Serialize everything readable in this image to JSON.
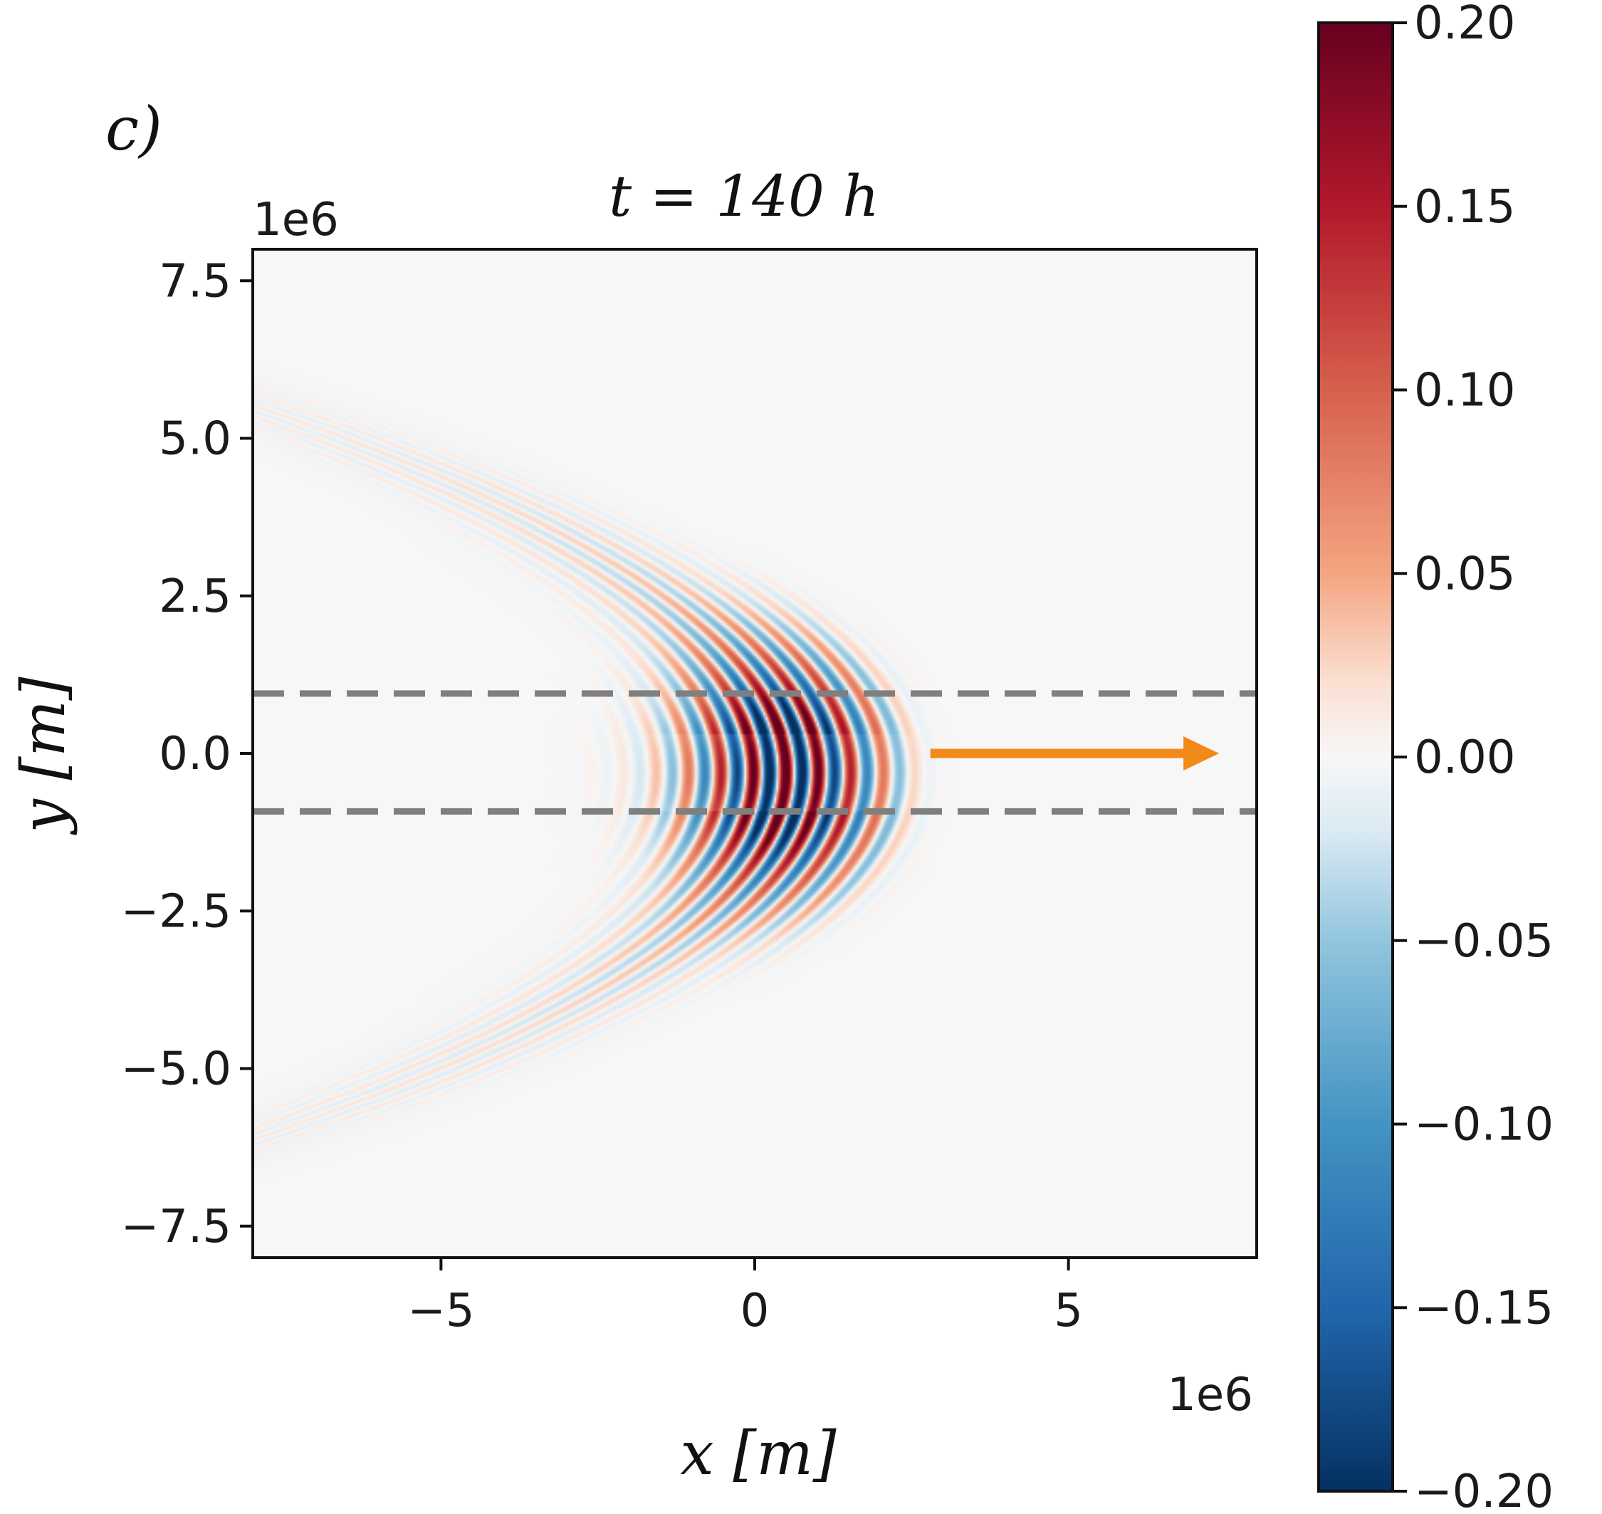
{
  "panel_label": "c)",
  "title": "t = 140 h",
  "x_offset_text": "1e6",
  "y_offset_text": "1e6",
  "chart_data": {
    "type": "heatmap",
    "title": "t = 140 h",
    "xlabel": "x [m]",
    "ylabel": "y [m]",
    "x_multiplier": "1e6",
    "y_multiplier": "1e6",
    "xlim": [
      -8,
      8
    ],
    "ylim": [
      -8,
      8
    ],
    "xticks": [
      -5,
      0,
      5
    ],
    "xtick_labels": [
      "−5",
      "0",
      "5"
    ],
    "yticks": [
      7.5,
      5.0,
      2.5,
      0.0,
      -2.5,
      -5.0,
      -7.5
    ],
    "ytick_labels": [
      "7.5",
      "5.0",
      "2.5",
      "0.0",
      "−2.5",
      "−5.0",
      "−7.5"
    ],
    "colormap": "RdBu_r",
    "colorbar": {
      "vmin": -0.2,
      "vmax": 0.2,
      "ticks": [
        0.2,
        0.15,
        0.1,
        0.05,
        0.0,
        -0.05,
        -0.1,
        -0.15,
        -0.2
      ],
      "tick_labels": [
        "0.20",
        "0.15",
        "0.10",
        "0.05",
        "0.00",
        "−0.05",
        "−0.10",
        "−0.15",
        "−0.20"
      ]
    },
    "hlines": [
      {
        "y": 0.95,
        "style": "dashed",
        "color": "#7f7f7f"
      },
      {
        "y": -0.92,
        "style": "dashed",
        "color": "#7f7f7f"
      }
    ],
    "arrow": {
      "x_start": 2.8,
      "x_end": 7.4,
      "y": 0.0,
      "color": "#f28a1a"
    },
    "field": {
      "center": [
        0.5,
        -0.3
      ],
      "peak_amplitude": 0.2,
      "wave_spacing": 0.52,
      "curvature": 0.55,
      "envelope_scale": [
        1.1,
        1.2
      ],
      "tail_direction": "upper-left and lower-left"
    },
    "grid": false,
    "legend": "none"
  },
  "colors": {
    "dashed_lines": "#7f7f7f",
    "arrow": "#f28a1a",
    "background_field": "#f6f6f6",
    "axes_frame": "#111111"
  }
}
